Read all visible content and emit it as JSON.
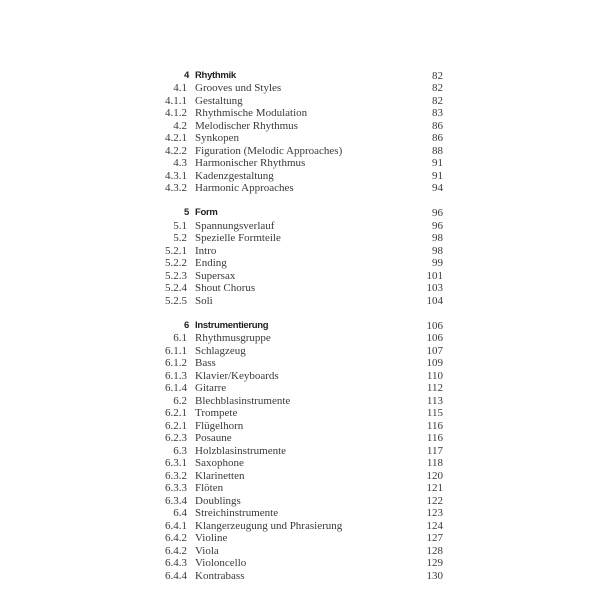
{
  "sections": [
    {
      "num": "4",
      "title": "Rhythmik",
      "page": "82",
      "entries": [
        {
          "num": "4.1",
          "title": "Grooves und Styles",
          "page": "82"
        },
        {
          "num": "4.1.1",
          "title": "Gestaltung",
          "page": "82"
        },
        {
          "num": "4.1.2",
          "title": "Rhythmische Modulation",
          "page": "83"
        },
        {
          "num": "4.2",
          "title": "Melodischer Rhythmus",
          "page": "86"
        },
        {
          "num": "4.2.1",
          "title": "Synkopen",
          "page": "86"
        },
        {
          "num": "4.2.2",
          "title": "Figuration (Melodic Approaches)",
          "page": "88"
        },
        {
          "num": "4.3",
          "title": "Harmonischer Rhythmus",
          "page": "91"
        },
        {
          "num": "4.3.1",
          "title": "Kadenzgestaltung",
          "page": "91"
        },
        {
          "num": "4.3.2",
          "title": "Harmonic Approaches",
          "page": "94"
        }
      ]
    },
    {
      "num": "5",
      "title": "Form",
      "page": "96",
      "entries": [
        {
          "num": "5.1",
          "title": "Spannungsverlauf",
          "page": "96"
        },
        {
          "num": "5.2",
          "title": "Spezielle Formteile",
          "page": "98"
        },
        {
          "num": "5.2.1",
          "title": "Intro",
          "page": "98"
        },
        {
          "num": "5.2.2",
          "title": "Ending",
          "page": "99"
        },
        {
          "num": "5.2.3",
          "title": "Supersax",
          "page": "101"
        },
        {
          "num": "5.2.4",
          "title": "Shout Chorus",
          "page": "103"
        },
        {
          "num": "5.2.5",
          "title": "Soli",
          "page": "104"
        }
      ]
    },
    {
      "num": "6",
      "title": "Instrumentierung",
      "page": "106",
      "entries": [
        {
          "num": "6.1",
          "title": "Rhythmusgruppe",
          "page": "106"
        },
        {
          "num": "6.1.1",
          "title": "Schlagzeug",
          "page": "107"
        },
        {
          "num": "6.1.2",
          "title": "Bass",
          "page": "109"
        },
        {
          "num": "6.1.3",
          "title": "Klavier/Keyboards",
          "page": "110"
        },
        {
          "num": "6.1.4",
          "title": "Gitarre",
          "page": "112"
        },
        {
          "num": "6.2",
          "title": "Blechblasinstrumente",
          "page": "113"
        },
        {
          "num": "6.2.1",
          "title": "Trompete",
          "page": "115"
        },
        {
          "num": "6.2.1",
          "title": "Flügelhorn",
          "page": "116"
        },
        {
          "num": "6.2.3",
          "title": "Posaune",
          "page": "116"
        },
        {
          "num": "6.3",
          "title": "Holzblasinstrumente",
          "page": "117"
        },
        {
          "num": "6.3.1",
          "title": "Saxophone",
          "page": "118"
        },
        {
          "num": "6.3.2",
          "title": "Klarinetten",
          "page": "120"
        },
        {
          "num": "6.3.3",
          "title": "Flöten",
          "page": "121"
        },
        {
          "num": "6.3.4",
          "title": "Doublings",
          "page": "122"
        },
        {
          "num": "6.4",
          "title": "Streichinstrumente",
          "page": "123"
        },
        {
          "num": "6.4.1",
          "title": "Klangerzeugung und Phrasierung",
          "page": "124"
        },
        {
          "num": "6.4.2",
          "title": "Violine",
          "page": "127"
        },
        {
          "num": "6.4.2",
          "title": "Viola",
          "page": "128"
        },
        {
          "num": "6.4.3",
          "title": "Violoncello",
          "page": "129"
        },
        {
          "num": "6.4.4",
          "title": "Kontrabass",
          "page": "130"
        }
      ]
    }
  ]
}
